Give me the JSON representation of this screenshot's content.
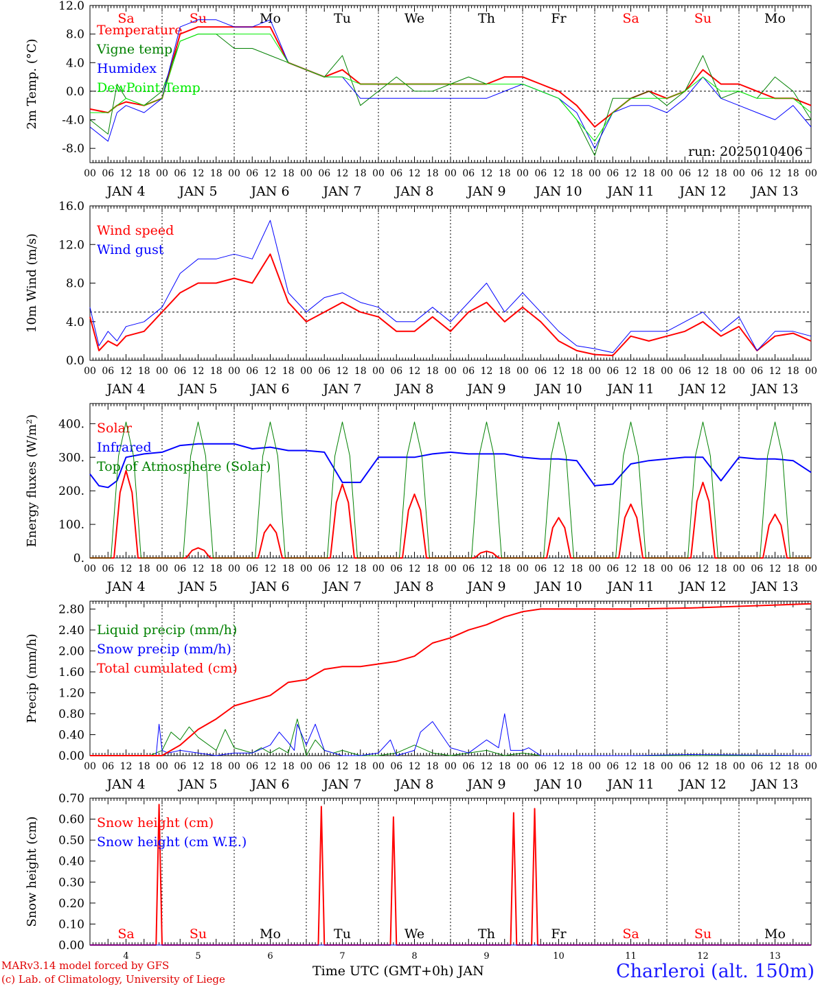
{
  "meta": {
    "model_line": "MARv3.14 model forced by GFS",
    "lab_line": "(c) Lab. of Climatology, University of Liege",
    "location": "Charleroi (alt. 150m)",
    "bottom_xlabel": "Time UTC (GMT+0h) JAN"
  },
  "colors": {
    "red": "#ff0000",
    "blue": "#0000ff",
    "green": "#008000",
    "lightgreen": "#00ee00",
    "grid": "#000000"
  },
  "days": {
    "weekday_labels": [
      "Sa",
      "Su",
      "Mo",
      "Tu",
      "We",
      "Th",
      "Fr",
      "Sa",
      "Su",
      "Mo"
    ],
    "weekday_colors": [
      "#ff0000",
      "#ff0000",
      "#000000",
      "#000000",
      "#000000",
      "#000000",
      "#000000",
      "#ff0000",
      "#ff0000",
      "#000000"
    ],
    "date_labels": [
      "JAN  4",
      "JAN  5",
      "JAN  6",
      "JAN  7",
      "JAN  8",
      "JAN  9",
      "JAN 10",
      "JAN 11",
      "JAN 12",
      "JAN 13"
    ],
    "day_numbers": [
      "4",
      "5",
      "6",
      "7",
      "8",
      "9",
      "10",
      "11",
      "12",
      "13"
    ],
    "hour_labels": [
      "00",
      "06",
      "12",
      "18"
    ],
    "final_hour_label": "00"
  },
  "chart_data": [
    {
      "type": "line",
      "ylabel": "2m Temp. (°C)",
      "ylim": [
        -10,
        12
      ],
      "yticks": [
        "-8.0",
        "-4.0",
        "0.0",
        "4.0",
        "8.0",
        "12.0"
      ],
      "ytick_values": [
        -8,
        -4,
        0,
        4,
        8,
        12
      ],
      "reference_line": 0,
      "x_unit": "hours since JAN 4 00 UTC",
      "annotation": "run: 2025010406",
      "show_weekdays": true,
      "series": [
        {
          "name": "Temperature",
          "color": "#ff0000",
          "width": 2,
          "x": [
            0,
            6,
            9,
            12,
            18,
            24,
            30,
            36,
            42,
            48,
            54,
            60,
            66,
            72,
            78,
            84,
            90,
            96,
            102,
            108,
            114,
            120,
            126,
            132,
            138,
            144,
            150,
            156,
            162,
            168,
            174,
            180,
            186,
            192,
            198,
            204,
            210,
            216,
            222,
            228,
            234,
            240
          ],
          "y": [
            -2.5,
            -3,
            -2,
            -1.5,
            -2,
            -1,
            8,
            9,
            9,
            9,
            9,
            9,
            4,
            3,
            2,
            3,
            1,
            1,
            1,
            1,
            1,
            1,
            1,
            1,
            2,
            2,
            1,
            0,
            -2,
            -5,
            -3,
            -1,
            0,
            -1,
            0,
            3,
            1,
            1,
            0,
            -1,
            -1,
            -2
          ]
        },
        {
          "name": "Vigne temp",
          "color": "#008000",
          "width": 1,
          "x": [
            0,
            6,
            9,
            12,
            18,
            24,
            30,
            36,
            42,
            48,
            54,
            60,
            66,
            72,
            78,
            84,
            90,
            96,
            102,
            108,
            114,
            120,
            126,
            132,
            138,
            144,
            150,
            156,
            162,
            168,
            174,
            180,
            186,
            192,
            198,
            204,
            210,
            216,
            222,
            228,
            234,
            240
          ],
          "y": [
            -4,
            -6,
            1,
            -1,
            -2,
            0,
            7,
            8,
            8,
            6,
            6,
            5,
            4,
            3,
            2,
            5,
            -2,
            0,
            2,
            0,
            0,
            1,
            2,
            1,
            1,
            1,
            0,
            -1,
            -4,
            -9,
            -1,
            -1,
            0,
            -2,
            0,
            5,
            -1,
            0,
            -1,
            2,
            0,
            -4
          ]
        },
        {
          "name": "Humidex",
          "color": "#0000ff",
          "width": 1,
          "x": [
            0,
            6,
            9,
            12,
            18,
            24,
            30,
            36,
            42,
            48,
            54,
            60,
            66,
            72,
            78,
            84,
            90,
            96,
            102,
            108,
            114,
            120,
            126,
            132,
            138,
            144,
            150,
            156,
            162,
            168,
            174,
            180,
            186,
            192,
            198,
            204,
            210,
            216,
            222,
            228,
            234,
            240
          ],
          "y": [
            -5,
            -7,
            -3,
            -2,
            -3,
            -1,
            9,
            10,
            10,
            9,
            9,
            10,
            4,
            3,
            2,
            2,
            -1,
            -1,
            -1,
            -1,
            -1,
            -1,
            -1,
            -1,
            0,
            1,
            0,
            -1,
            -3,
            -8,
            -3,
            -2,
            -2,
            -3,
            -1,
            2,
            -1,
            -2,
            -3,
            -4,
            -2,
            -5
          ]
        },
        {
          "name": "DewPoint Temp",
          "color": "#00ee00",
          "width": 1,
          "x": [
            0,
            6,
            9,
            12,
            18,
            24,
            30,
            36,
            42,
            48,
            54,
            60,
            66,
            72,
            78,
            84,
            90,
            96,
            102,
            108,
            114,
            120,
            126,
            132,
            138,
            144,
            150,
            156,
            162,
            168,
            174,
            180,
            186,
            192,
            198,
            204,
            210,
            216,
            222,
            228,
            234,
            240
          ],
          "y": [
            -3,
            -3,
            -2,
            -1,
            -2,
            -1,
            7,
            8,
            8,
            8,
            8,
            8,
            4,
            3,
            2,
            2,
            1,
            1,
            1,
            1,
            1,
            1,
            1,
            1,
            1,
            1,
            0,
            -1,
            -4,
            -7,
            -3,
            -1,
            -1,
            -1,
            0,
            2,
            0,
            0,
            -1,
            -1,
            -1,
            -3
          ]
        }
      ]
    },
    {
      "type": "line",
      "ylabel": "10m Wind (m/s)",
      "ylim": [
        0,
        16
      ],
      "yticks": [
        "0.0",
        "4.0",
        "8.0",
        "12.0",
        "16.0"
      ],
      "ytick_values": [
        0,
        4,
        8,
        12,
        16
      ],
      "reference_line": 5,
      "x_unit": "hours since JAN 4 00 UTC",
      "show_weekdays": false,
      "series": [
        {
          "name": "Wind speed",
          "color": "#ff0000",
          "width": 2,
          "x": [
            0,
            3,
            6,
            9,
            12,
            18,
            24,
            30,
            36,
            42,
            48,
            54,
            60,
            66,
            72,
            78,
            84,
            90,
            96,
            102,
            108,
            114,
            120,
            126,
            132,
            138,
            144,
            150,
            156,
            162,
            168,
            174,
            180,
            186,
            192,
            198,
            204,
            210,
            216,
            222,
            228,
            234,
            240
          ],
          "y": [
            4.5,
            1,
            2,
            1.5,
            2.5,
            3,
            5,
            7,
            8,
            8,
            8.5,
            8,
            11,
            6,
            4,
            5,
            6,
            5,
            4.5,
            3,
            3,
            4.5,
            3,
            5,
            6,
            4,
            5.5,
            4,
            2,
            1,
            0.6,
            0.5,
            2.5,
            2,
            2.5,
            3,
            4,
            2.5,
            3.5,
            1,
            2.5,
            2.8,
            2
          ]
        },
        {
          "name": "Wind gust",
          "color": "#0000ff",
          "width": 1,
          "x": [
            0,
            3,
            6,
            9,
            12,
            18,
            24,
            30,
            36,
            42,
            48,
            54,
            60,
            66,
            72,
            78,
            84,
            90,
            96,
            102,
            108,
            114,
            120,
            126,
            132,
            138,
            144,
            150,
            156,
            162,
            168,
            174,
            180,
            186,
            192,
            198,
            204,
            210,
            216,
            222,
            228,
            234,
            240
          ],
          "y": [
            5.5,
            1.5,
            3,
            2,
            3.5,
            4,
            5.5,
            9,
            10.5,
            10.5,
            11,
            10.5,
            14.5,
            7,
            5,
            6.5,
            7,
            6,
            5.5,
            4,
            4,
            5.5,
            4,
            6,
            8,
            5,
            7,
            5,
            3,
            1.5,
            1.2,
            0.8,
            3,
            3,
            3,
            4,
            5,
            3,
            4.5,
            1,
            3,
            3,
            2.5
          ]
        }
      ]
    },
    {
      "type": "line",
      "ylabel": "Energy fluxes (W/m²)",
      "ylim": [
        0,
        460
      ],
      "yticks": [
        "0.",
        "100.",
        "200.",
        "300.",
        "400."
      ],
      "ytick_values": [
        0,
        100,
        200,
        300,
        400
      ],
      "x_unit": "hours since JAN 4 00 UTC",
      "show_weekdays": false,
      "toa_peak": 405,
      "solar_peaks": [
        260,
        30,
        100,
        220,
        190,
        20,
        120,
        160,
        225,
        130
      ],
      "series": [
        {
          "name": "Solar",
          "color": "#ff0000",
          "width": 2
        },
        {
          "name": "Infrared",
          "color": "#0000ff",
          "width": 2,
          "x": [
            0,
            3,
            6,
            9,
            12,
            18,
            24,
            30,
            36,
            42,
            48,
            54,
            60,
            66,
            72,
            78,
            84,
            90,
            96,
            102,
            108,
            114,
            120,
            126,
            132,
            138,
            144,
            150,
            156,
            162,
            168,
            174,
            180,
            186,
            192,
            198,
            204,
            210,
            216,
            222,
            228,
            234,
            240
          ],
          "y": [
            250,
            215,
            210,
            230,
            300,
            310,
            315,
            335,
            340,
            340,
            340,
            325,
            330,
            320,
            320,
            315,
            225,
            225,
            300,
            300,
            300,
            310,
            315,
            310,
            310,
            310,
            300,
            295,
            295,
            290,
            215,
            220,
            280,
            290,
            295,
            300,
            300,
            230,
            300,
            295,
            295,
            290,
            255
          ]
        },
        {
          "name": "Top of Atmosphere (Solar)",
          "color": "#008000",
          "width": 1
        }
      ]
    },
    {
      "type": "line",
      "ylabel": "Precip (mm/h)",
      "ylim": [
        0,
        2.95
      ],
      "yticks": [
        "0.00",
        "0.40",
        "0.80",
        "1.20",
        "1.60",
        "2.00",
        "2.40",
        "2.80"
      ],
      "ytick_values": [
        0,
        0.4,
        0.8,
        1.2,
        1.6,
        2.0,
        2.4,
        2.8
      ],
      "x_unit": "hours since JAN 4 00 UTC",
      "show_weekdays": false,
      "series": [
        {
          "name": "Liquid precip (mm/h)",
          "color": "#008000",
          "width": 1,
          "x": [
            0,
            20,
            24,
            27,
            30,
            33,
            36,
            42,
            45,
            48,
            51,
            54,
            57,
            60,
            63,
            66,
            69,
            72,
            75,
            78,
            81,
            84,
            90,
            96,
            102,
            108,
            114,
            120,
            126,
            132,
            138,
            144,
            150,
            180,
            240
          ],
          "y": [
            0,
            0,
            0.1,
            0.45,
            0.3,
            0.55,
            0.35,
            0.1,
            0.5,
            0.15,
            0.1,
            0.05,
            0.15,
            0.05,
            0.15,
            0.05,
            0.7,
            0.0,
            0.3,
            0.1,
            0.05,
            0.1,
            0,
            0,
            0.05,
            0.2,
            0.05,
            0,
            0.05,
            0.1,
            0,
            0.05,
            0,
            0,
            0
          ]
        },
        {
          "name": "Snow precip (mm/h)",
          "color": "#0000ff",
          "width": 1,
          "x": [
            0,
            22,
            23,
            24,
            26,
            30,
            36,
            42,
            48,
            54,
            60,
            63,
            66,
            68,
            69,
            72,
            75,
            78,
            81,
            84,
            90,
            96,
            100,
            102,
            108,
            110,
            114,
            120,
            126,
            132,
            136,
            138,
            140,
            144,
            146,
            150,
            156,
            180,
            200,
            240
          ],
          "y": [
            0,
            0,
            0.6,
            0.1,
            0.05,
            0.1,
            0.05,
            0,
            0.05,
            0.05,
            0.2,
            0.45,
            0.25,
            0.1,
            0.6,
            0.2,
            0.6,
            0.1,
            0.05,
            0,
            0,
            0.05,
            0.3,
            0,
            0.1,
            0.45,
            0.65,
            0.15,
            0.05,
            0.3,
            0.15,
            0.8,
            0.1,
            0.1,
            0.15,
            0,
            0,
            0,
            0.02,
            0
          ]
        },
        {
          "name": "Total cumulated (cm)",
          "color": "#ff0000",
          "width": 2,
          "x": [
            0,
            24,
            30,
            36,
            42,
            48,
            54,
            60,
            66,
            72,
            78,
            84,
            90,
            96,
            102,
            108,
            114,
            120,
            126,
            132,
            138,
            144,
            150,
            156,
            180,
            200,
            240
          ],
          "y": [
            0,
            0,
            0.2,
            0.5,
            0.7,
            0.95,
            1.05,
            1.15,
            1.4,
            1.45,
            1.65,
            1.7,
            1.7,
            1.75,
            1.8,
            1.9,
            2.15,
            2.25,
            2.4,
            2.5,
            2.65,
            2.75,
            2.8,
            2.8,
            2.8,
            2.82,
            2.9
          ]
        }
      ]
    },
    {
      "type": "line",
      "ylabel": "Snow height (cm)",
      "ylim": [
        0,
        0.7
      ],
      "yticks": [
        "0.00",
        "0.10",
        "0.20",
        "0.30",
        "0.40",
        "0.50",
        "0.60",
        "0.70"
      ],
      "ytick_values": [
        0,
        0.1,
        0.2,
        0.3,
        0.4,
        0.5,
        0.6,
        0.7
      ],
      "x_unit": "hours since JAN 4 00 UTC",
      "show_weekdays_bottom": true,
      "series": [
        {
          "name": "Snow height (cm)",
          "color": "#ff0000",
          "width": 2,
          "x": [
            0,
            22,
            23,
            24,
            76,
            77,
            78,
            100,
            101,
            102,
            140,
            141,
            142,
            147,
            148,
            149,
            240
          ],
          "y": [
            0,
            0,
            0.67,
            0,
            0,
            0.66,
            0,
            0,
            0.61,
            0,
            0,
            0.63,
            0,
            0,
            0.65,
            0,
            0
          ]
        },
        {
          "name": "Snow height (cm W.E.)",
          "color": "#0000ff",
          "width": 1,
          "x": [
            0,
            240
          ],
          "y": [
            0,
            0
          ]
        }
      ]
    }
  ]
}
